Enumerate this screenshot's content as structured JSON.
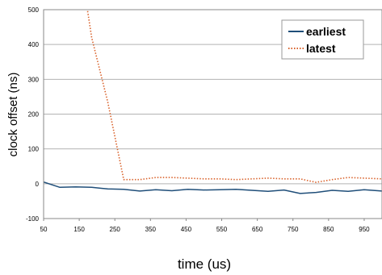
{
  "chart_data": {
    "type": "line",
    "xlabel": "time (us)",
    "ylabel": "clock offset (ns)",
    "xlim": [
      50,
      1000
    ],
    "ylim": [
      -100,
      500
    ],
    "x_ticks": [
      50,
      150,
      250,
      350,
      450,
      550,
      650,
      750,
      850,
      950
    ],
    "y_ticks": [
      -100,
      0,
      100,
      200,
      300,
      400,
      500
    ],
    "grid": "horizontal",
    "legend_position": "top-right",
    "series": [
      {
        "name": "earliest",
        "color": "#1f4e79",
        "style": "solid",
        "points": [
          [
            50,
            5
          ],
          [
            95,
            -10
          ],
          [
            140,
            -9
          ],
          [
            185,
            -10
          ],
          [
            230,
            -15
          ],
          [
            275,
            -16
          ],
          [
            320,
            -21
          ],
          [
            365,
            -17
          ],
          [
            410,
            -20
          ],
          [
            455,
            -16
          ],
          [
            500,
            -18
          ],
          [
            545,
            -17
          ],
          [
            590,
            -16
          ],
          [
            635,
            -19
          ],
          [
            680,
            -22
          ],
          [
            725,
            -18
          ],
          [
            770,
            -28
          ],
          [
            815,
            -25
          ],
          [
            860,
            -19
          ],
          [
            905,
            -22
          ],
          [
            950,
            -17
          ],
          [
            1000,
            -21
          ]
        ]
      },
      {
        "name": "latest",
        "color": "#d9622b",
        "style": "dotted",
        "points": [
          [
            170,
            520
          ],
          [
            185,
            420
          ],
          [
            230,
            235
          ],
          [
            275,
            12
          ],
          [
            320,
            12
          ],
          [
            365,
            18
          ],
          [
            410,
            18
          ],
          [
            455,
            16
          ],
          [
            500,
            14
          ],
          [
            545,
            14
          ],
          [
            590,
            12
          ],
          [
            635,
            14
          ],
          [
            680,
            16
          ],
          [
            725,
            14
          ],
          [
            770,
            14
          ],
          [
            815,
            4
          ],
          [
            860,
            12
          ],
          [
            905,
            18
          ],
          [
            950,
            16
          ],
          [
            1000,
            14
          ]
        ]
      }
    ]
  }
}
